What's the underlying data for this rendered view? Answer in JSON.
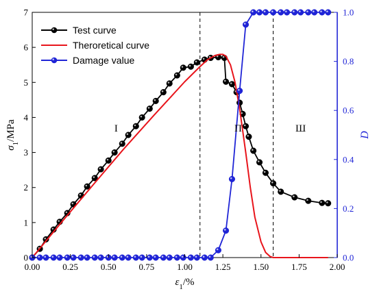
{
  "chart_data": {
    "type": "line",
    "xlabel_symbol": "ε",
    "xlabel_sub": "1",
    "xlabel_unit": "/%",
    "ylabel_symbol": "σ",
    "ylabel_sub": "1",
    "ylabel_unit": "/MPa",
    "y2label": "D",
    "xlim": [
      0,
      2.0
    ],
    "ylim": [
      0,
      7
    ],
    "y2lim": [
      0,
      1.0
    ],
    "x_ticks": [
      "0.00",
      "0.25",
      "0.50",
      "0.75",
      "1.00",
      "1.25",
      "1.50",
      "1.75",
      "2.00"
    ],
    "y_ticks": [
      "0",
      "1",
      "2",
      "3",
      "4",
      "5",
      "6",
      "7"
    ],
    "y2_ticks": [
      "0.0",
      "0.2",
      "0.4",
      "0.6",
      "0.8",
      "1.0"
    ],
    "region_labels": [
      {
        "text": "I",
        "x": 0.55,
        "y": 3.6
      },
      {
        "text": "Π",
        "x": 1.35,
        "y": 3.6
      },
      {
        "text": "Ш",
        "x": 1.76,
        "y": 3.6
      }
    ],
    "divider_x": [
      1.1,
      1.58
    ],
    "legend": {
      "placement": "top-left",
      "entries": [
        "Test curve",
        "Theroretical curve",
        "Damage value"
      ]
    },
    "colors": {
      "test": "#000000",
      "theory": "#e8141b",
      "damage": "#1f24d6"
    },
    "series": [
      {
        "name": "Test curve",
        "axis": "left",
        "marker": "circle",
        "x": [
          0.0,
          0.05,
          0.09,
          0.14,
          0.18,
          0.23,
          0.27,
          0.32,
          0.36,
          0.41,
          0.45,
          0.5,
          0.54,
          0.59,
          0.63,
          0.68,
          0.72,
          0.77,
          0.81,
          0.86,
          0.9,
          0.95,
          0.99,
          1.04,
          1.08,
          1.13,
          1.17,
          1.22,
          1.26,
          1.27,
          1.31,
          1.34,
          1.36,
          1.38,
          1.4,
          1.42,
          1.45,
          1.49,
          1.53,
          1.58,
          1.63,
          1.72,
          1.81,
          1.9,
          1.94
        ],
        "y": [
          0.0,
          0.25,
          0.52,
          0.8,
          1.02,
          1.27,
          1.52,
          1.77,
          2.03,
          2.27,
          2.52,
          2.77,
          3.0,
          3.25,
          3.5,
          3.75,
          4.0,
          4.25,
          4.47,
          4.72,
          4.97,
          5.2,
          5.42,
          5.45,
          5.57,
          5.65,
          5.7,
          5.72,
          5.7,
          5.02,
          4.95,
          4.72,
          4.42,
          4.1,
          3.75,
          3.45,
          3.05,
          2.72,
          2.42,
          2.12,
          1.88,
          1.72,
          1.62,
          1.56,
          1.55
        ]
      },
      {
        "name": "Theroretical curve",
        "axis": "left",
        "marker": "none",
        "x": [
          0.0,
          0.2,
          0.4,
          0.6,
          0.8,
          1.0,
          1.1,
          1.15,
          1.2,
          1.23,
          1.25,
          1.27,
          1.3,
          1.33,
          1.36,
          1.4,
          1.43,
          1.46,
          1.5,
          1.53,
          1.56,
          1.58,
          1.6,
          1.94
        ],
        "y": [
          0.0,
          1.05,
          2.08,
          3.1,
          4.07,
          5.02,
          5.45,
          5.65,
          5.77,
          5.8,
          5.8,
          5.75,
          5.5,
          5.0,
          4.25,
          3.0,
          2.0,
          1.15,
          0.45,
          0.15,
          0.03,
          0.0,
          0.0,
          0.0
        ]
      },
      {
        "name": "Damage value",
        "axis": "right",
        "marker": "circle",
        "x": [
          0.0,
          0.05,
          0.09,
          0.14,
          0.18,
          0.23,
          0.27,
          0.32,
          0.36,
          0.41,
          0.45,
          0.5,
          0.54,
          0.59,
          0.63,
          0.68,
          0.72,
          0.77,
          0.81,
          0.86,
          0.9,
          0.95,
          0.99,
          1.04,
          1.08,
          1.13,
          1.17,
          1.22,
          1.27,
          1.31,
          1.36,
          1.4,
          1.45,
          1.49,
          1.53,
          1.58,
          1.63,
          1.67,
          1.72,
          1.76,
          1.81,
          1.85,
          1.9,
          1.94
        ],
        "y": [
          0.0,
          0.0,
          0.0,
          0.0,
          0.0,
          0.0,
          0.0,
          0.0,
          0.0,
          0.0,
          0.0,
          0.0,
          0.0,
          0.0,
          0.0,
          0.0,
          0.0,
          0.0,
          0.0,
          0.0,
          0.0,
          0.0,
          0.0,
          0.0,
          0.0,
          0.0,
          0.0,
          0.03,
          0.11,
          0.32,
          0.68,
          0.95,
          1.0,
          1.0,
          1.0,
          1.0,
          1.0,
          1.0,
          1.0,
          1.0,
          1.0,
          1.0,
          1.0,
          1.0
        ]
      }
    ]
  }
}
